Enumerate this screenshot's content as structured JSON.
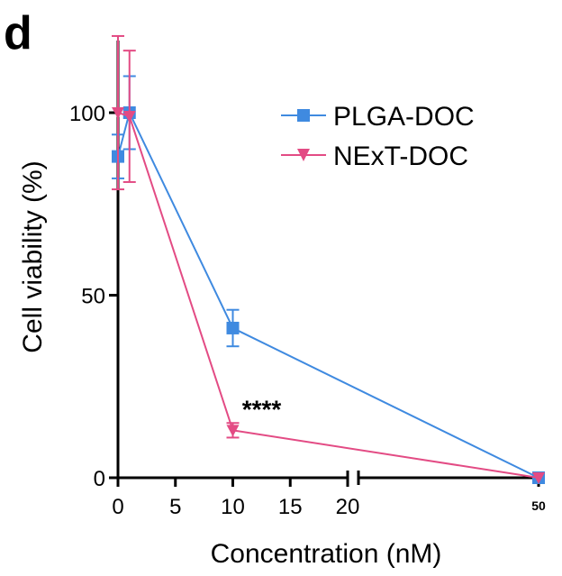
{
  "panel_label": "d",
  "colors": {
    "plga": "#3f8ae0",
    "next": "#e34b84",
    "axis": "#000000"
  },
  "chart_data": {
    "type": "line",
    "xlabel": "Concentration (nM)",
    "ylabel": "Cell viability (%)",
    "ylim": [
      0,
      120
    ],
    "yticks": [
      0,
      50,
      100
    ],
    "xticks_main": [
      0,
      5,
      10,
      15,
      20
    ],
    "xticks_break": [
      50
    ],
    "x_axis_break": [
      20,
      50
    ],
    "legend_position": "top-right",
    "series": [
      {
        "name": "PLGA-DOC",
        "marker": "square",
        "color": "#3f8ae0",
        "x": [
          0,
          1,
          10,
          50
        ],
        "y": [
          88,
          100,
          41,
          0
        ],
        "err": [
          6,
          10,
          5,
          0
        ]
      },
      {
        "name": "NExT-DOC",
        "marker": "triangle-down",
        "color": "#e34b84",
        "x": [
          0,
          1,
          10,
          50
        ],
        "y": [
          100,
          99,
          13,
          0
        ],
        "err": [
          21,
          18,
          2,
          0
        ]
      }
    ],
    "annotations": [
      {
        "text": "****",
        "x": 10,
        "y": 13
      }
    ]
  }
}
